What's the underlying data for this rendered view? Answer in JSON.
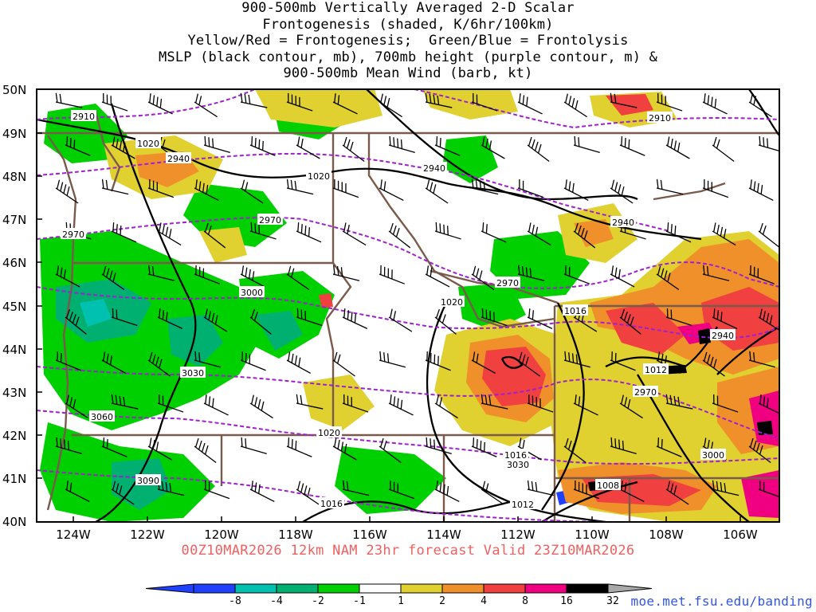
{
  "title": {
    "lines": [
      "900-500mb Vertically Averaged 2-D Scalar",
      "Frontogenesis (shaded, K/6hr/100km)",
      "Yellow/Red = Frontogenesis;  Green/Blue = Frontolysis",
      "MSLP (black contour, mb), 700mb height (purple contour, m) &",
      "900-500mb Mean Wind (barb, kt)"
    ]
  },
  "map": {
    "lat_labels": [
      "50N",
      "49N",
      "48N",
      "47N",
      "46N",
      "45N",
      "44N",
      "43N",
      "42N",
      "41N",
      "40N"
    ],
    "lon_labels": [
      "124W",
      "122W",
      "120W",
      "118W",
      "116W",
      "114W",
      "112W",
      "110W",
      "108W",
      "106W"
    ],
    "isobar_labels": [
      "1020",
      "1020",
      "1020",
      "1020",
      "1016",
      "1012",
      "1016",
      "1012",
      "1008",
      "1016"
    ],
    "height_labels": [
      "2910",
      "2910",
      "2940",
      "2940",
      "2940",
      "2970",
      "2970",
      "2970",
      "2940",
      "2970",
      "3000",
      "3030",
      "3060",
      "3030",
      "3000",
      "3090"
    ],
    "colors": {
      "mslp": "#000000",
      "height": "#a020d0",
      "state_border": "#7a5a4a",
      "frontolysis_weak": "#00d000",
      "frontolysis_mod": "#00b070",
      "frontolysis_strong": "#00c0b0",
      "frontolysis_extreme": "#2040ff",
      "frontogenesis_weak": "#e0d030",
      "frontogenesis_mod": "#f0902a",
      "frontogenesis_strong": "#f04040",
      "frontogenesis_extreme": "#f00080",
      "frontogenesis_max": "#000000"
    }
  },
  "footer": {
    "valid": "00Z10MAR2026 12km NAM 23hr forecast Valid 23Z10MAR2026",
    "credit": "moe.met.fsu.edu/banding"
  },
  "colorbar": {
    "labels": [
      "-8",
      "-4",
      "-2",
      "-1",
      "1",
      "2",
      "4",
      "8",
      "16",
      "32"
    ],
    "colors": [
      "#2040ff",
      "#00c0b0",
      "#00b070",
      "#00d000",
      "#ffffff",
      "#e0d030",
      "#f0902a",
      "#f04040",
      "#f00080",
      "#000000"
    ],
    "low_arrow_color": "#2040ff",
    "high_arrow_color": "#a8a8a8"
  }
}
